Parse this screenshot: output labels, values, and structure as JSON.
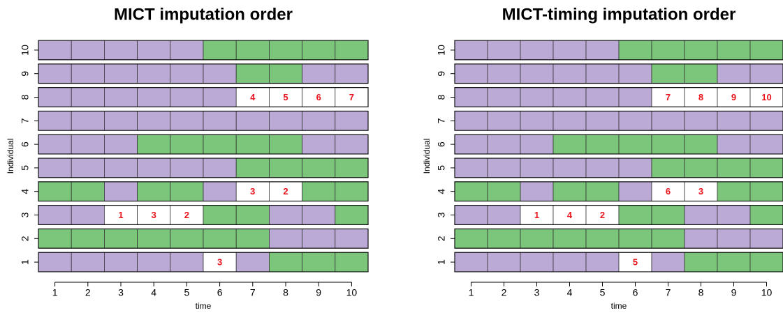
{
  "chart_data": [
    {
      "type": "tile",
      "title": "MICT imputation order",
      "xlabel": "time",
      "ylabel": "Individual",
      "xlim": [
        0.5,
        10.5
      ],
      "ylim": [
        0.5,
        10.5
      ],
      "xticks": [
        1,
        2,
        3,
        4,
        5,
        6,
        7,
        8,
        9,
        10
      ],
      "yticks": [
        1,
        2,
        3,
        4,
        5,
        6,
        7,
        8,
        9,
        10
      ],
      "missing_color": "#ffffff",
      "label_color": "#e8141c",
      "cells": [
        [
          "#bcaad6",
          "#bcaad6",
          "#bcaad6",
          "#bcaad6",
          "#bcaad6",
          3,
          "#bcaad6",
          "#7bc67b",
          "#7bc67b",
          "#7bc67b"
        ],
        [
          "#7bc67b",
          "#7bc67b",
          "#7bc67b",
          "#7bc67b",
          "#7bc67b",
          "#7bc67b",
          "#7bc67b",
          "#bcaad6",
          "#bcaad6",
          "#bcaad6"
        ],
        [
          "#bcaad6",
          "#bcaad6",
          1,
          3,
          2,
          "#7bc67b",
          "#7bc67b",
          "#bcaad6",
          "#bcaad6",
          "#7bc67b"
        ],
        [
          "#7bc67b",
          "#7bc67b",
          "#bcaad6",
          "#7bc67b",
          "#7bc67b",
          "#bcaad6",
          3,
          2,
          "#7bc67b",
          "#7bc67b"
        ],
        [
          "#bcaad6",
          "#bcaad6",
          "#bcaad6",
          "#bcaad6",
          "#bcaad6",
          "#bcaad6",
          "#7bc67b",
          "#7bc67b",
          "#7bc67b",
          "#7bc67b"
        ],
        [
          "#bcaad6",
          "#bcaad6",
          "#bcaad6",
          "#7bc67b",
          "#7bc67b",
          "#7bc67b",
          "#7bc67b",
          "#7bc67b",
          "#bcaad6",
          "#bcaad6"
        ],
        [
          "#bcaad6",
          "#bcaad6",
          "#bcaad6",
          "#bcaad6",
          "#bcaad6",
          "#bcaad6",
          "#bcaad6",
          "#bcaad6",
          "#bcaad6",
          "#bcaad6"
        ],
        [
          "#bcaad6",
          "#bcaad6",
          "#bcaad6",
          "#bcaad6",
          "#bcaad6",
          "#bcaad6",
          4,
          5,
          6,
          7
        ],
        [
          "#bcaad6",
          "#bcaad6",
          "#bcaad6",
          "#bcaad6",
          "#bcaad6",
          "#bcaad6",
          "#7bc67b",
          "#7bc67b",
          "#bcaad6",
          "#bcaad6"
        ],
        [
          "#bcaad6",
          "#bcaad6",
          "#bcaad6",
          "#bcaad6",
          "#bcaad6",
          "#7bc67b",
          "#7bc67b",
          "#7bc67b",
          "#7bc67b",
          "#7bc67b"
        ]
      ]
    },
    {
      "type": "tile",
      "title": "MICT-timing imputation order",
      "xlabel": "time",
      "ylabel": "Individual",
      "xlim": [
        0.5,
        10.5
      ],
      "ylim": [
        0.5,
        10.5
      ],
      "xticks": [
        1,
        2,
        3,
        4,
        5,
        6,
        7,
        8,
        9,
        10
      ],
      "yticks": [
        1,
        2,
        3,
        4,
        5,
        6,
        7,
        8,
        9,
        10
      ],
      "missing_color": "#ffffff",
      "label_color": "#e8141c",
      "cells": [
        [
          "#bcaad6",
          "#bcaad6",
          "#bcaad6",
          "#bcaad6",
          "#bcaad6",
          5,
          "#bcaad6",
          "#7bc67b",
          "#7bc67b",
          "#7bc67b"
        ],
        [
          "#7bc67b",
          "#7bc67b",
          "#7bc67b",
          "#7bc67b",
          "#7bc67b",
          "#7bc67b",
          "#7bc67b",
          "#bcaad6",
          "#bcaad6",
          "#bcaad6"
        ],
        [
          "#bcaad6",
          "#bcaad6",
          1,
          4,
          2,
          "#7bc67b",
          "#7bc67b",
          "#bcaad6",
          "#bcaad6",
          "#7bc67b"
        ],
        [
          "#7bc67b",
          "#7bc67b",
          "#bcaad6",
          "#7bc67b",
          "#7bc67b",
          "#bcaad6",
          6,
          3,
          "#7bc67b",
          "#7bc67b"
        ],
        [
          "#bcaad6",
          "#bcaad6",
          "#bcaad6",
          "#bcaad6",
          "#bcaad6",
          "#bcaad6",
          "#7bc67b",
          "#7bc67b",
          "#7bc67b",
          "#7bc67b"
        ],
        [
          "#bcaad6",
          "#bcaad6",
          "#bcaad6",
          "#7bc67b",
          "#7bc67b",
          "#7bc67b",
          "#7bc67b",
          "#7bc67b",
          "#bcaad6",
          "#bcaad6"
        ],
        [
          "#bcaad6",
          "#bcaad6",
          "#bcaad6",
          "#bcaad6",
          "#bcaad6",
          "#bcaad6",
          "#bcaad6",
          "#bcaad6",
          "#bcaad6",
          "#bcaad6"
        ],
        [
          "#bcaad6",
          "#bcaad6",
          "#bcaad6",
          "#bcaad6",
          "#bcaad6",
          "#bcaad6",
          7,
          8,
          9,
          10
        ],
        [
          "#bcaad6",
          "#bcaad6",
          "#bcaad6",
          "#bcaad6",
          "#bcaad6",
          "#bcaad6",
          "#7bc67b",
          "#7bc67b",
          "#bcaad6",
          "#bcaad6"
        ],
        [
          "#bcaad6",
          "#bcaad6",
          "#bcaad6",
          "#bcaad6",
          "#bcaad6",
          "#7bc67b",
          "#7bc67b",
          "#7bc67b",
          "#7bc67b",
          "#7bc67b"
        ]
      ]
    }
  ]
}
